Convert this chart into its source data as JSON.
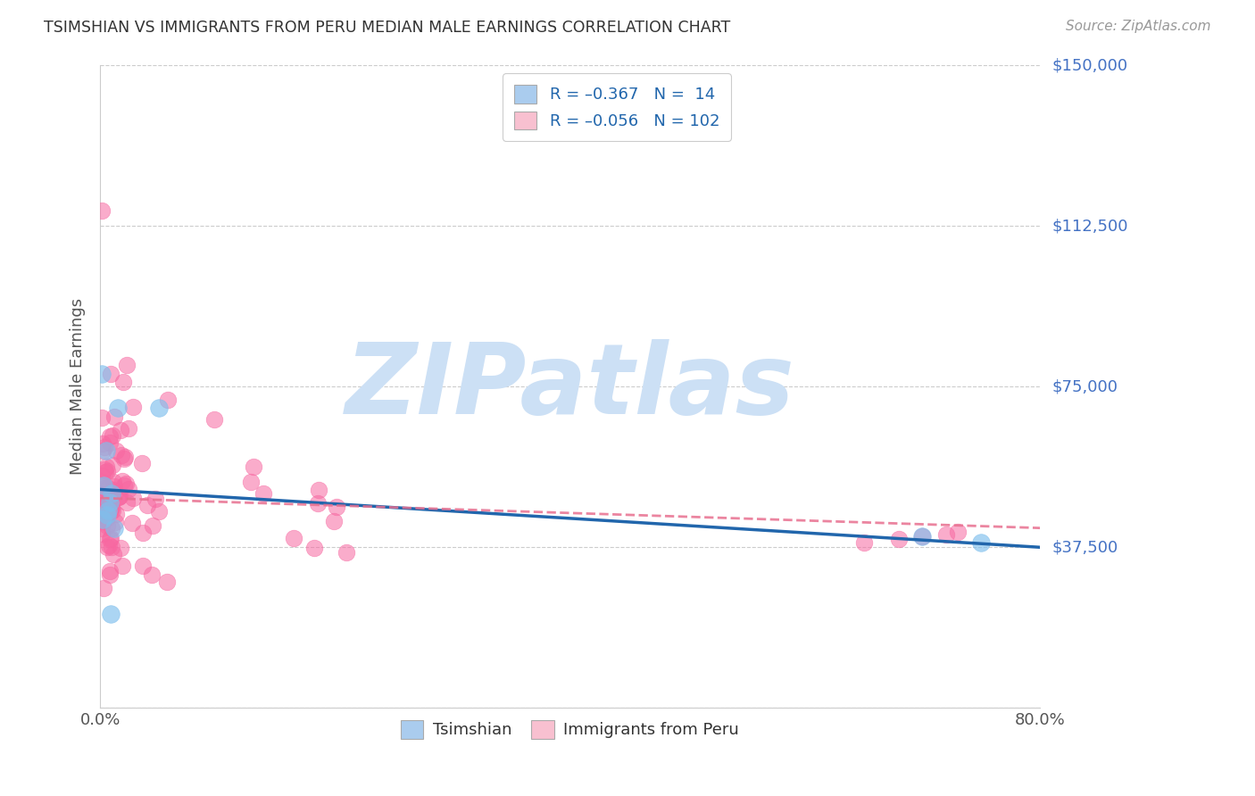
{
  "title": "TSIMSHIAN VS IMMIGRANTS FROM PERU MEDIAN MALE EARNINGS CORRELATION CHART",
  "source": "Source: ZipAtlas.com",
  "ylabel": "Median Male Earnings",
  "x_min": 0.0,
  "x_max": 0.8,
  "y_min": 0,
  "y_max": 150000,
  "y_ticks": [
    0,
    37500,
    75000,
    112500,
    150000
  ],
  "y_tick_labels": [
    "",
    "$37,500",
    "$75,000",
    "$112,500",
    "$150,000"
  ],
  "x_ticks": [
    0.0,
    0.1,
    0.2,
    0.3,
    0.4,
    0.5,
    0.6,
    0.7,
    0.8
  ],
  "x_tick_labels": [
    "0.0%",
    "",
    "",
    "",
    "",
    "",
    "",
    "",
    "80.0%"
  ],
  "tsimshian_color": "#7fbfed",
  "peru_color": "#f768a1",
  "tsimshian_line_color": "#2166ac",
  "peru_line_color": "#e87090",
  "background_color": "#ffffff",
  "grid_color": "#cccccc",
  "watermark": "ZIPatlas",
  "watermark_color": "#cce0f5",
  "legend_label_1": "R = –0.367   N =  14",
  "legend_label_2": "R = –0.056   N = 102",
  "legend_color_1": "#aaccee",
  "legend_color_2": "#f8c0d0",
  "tsimshian_line_y0": 51000,
  "tsimshian_line_y1": 37500,
  "peru_line_y0": 49000,
  "peru_line_y1": 42000,
  "tsimshian_points_x": [
    0.001,
    0.003,
    0.005,
    0.006,
    0.008,
    0.01,
    0.012,
    0.015,
    0.05,
    0.002,
    0.007,
    0.009,
    0.7,
    0.75
  ],
  "tsimshian_points_y": [
    78000,
    52000,
    60000,
    45000,
    48000,
    50000,
    42000,
    70000,
    70000,
    44000,
    46000,
    22000,
    40000,
    38500
  ]
}
